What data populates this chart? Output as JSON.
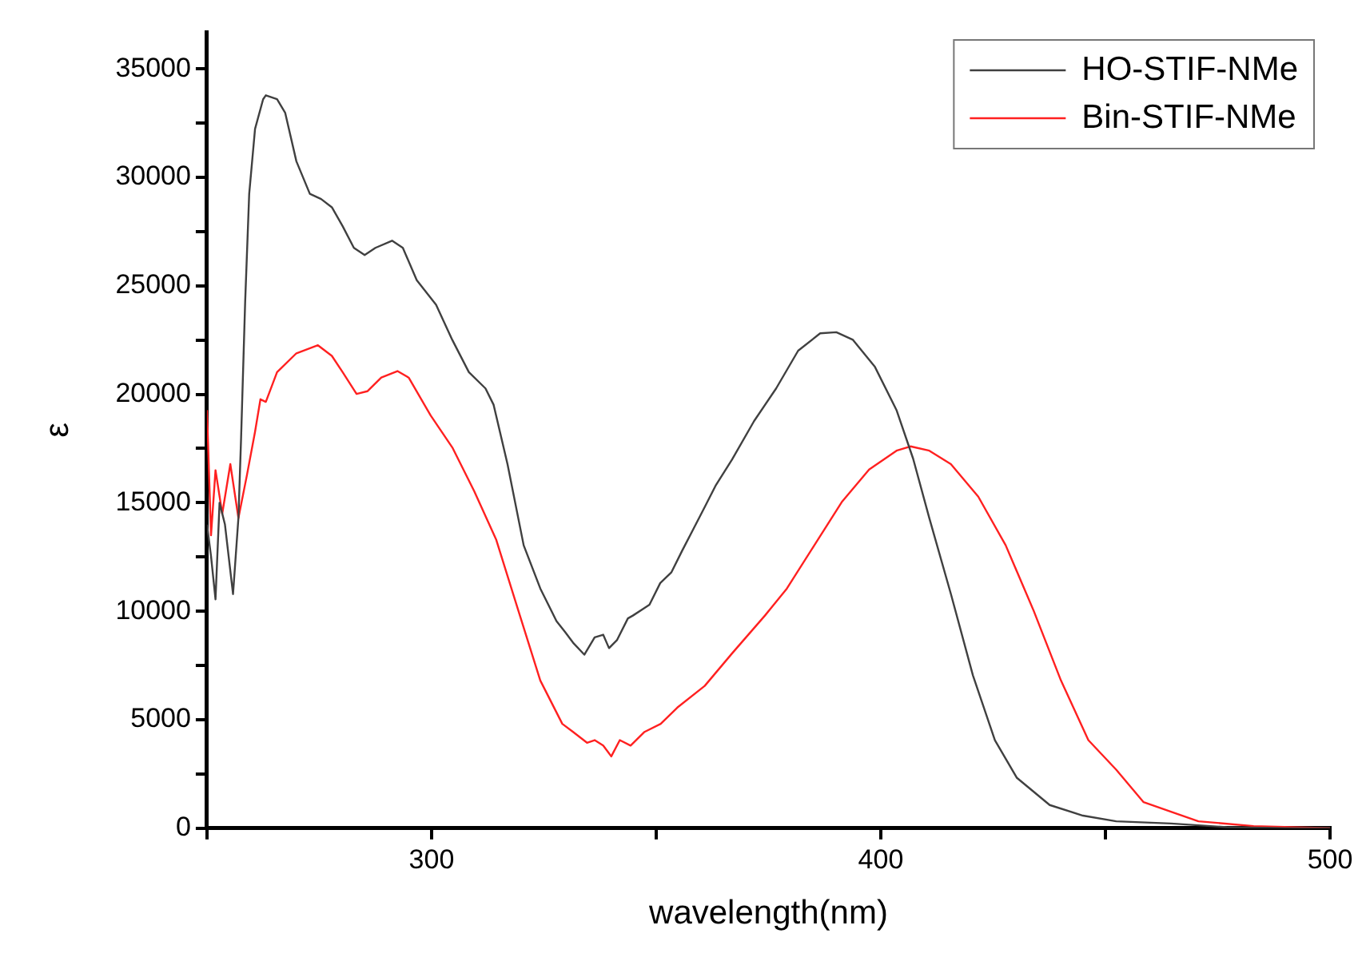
{
  "chart_data": {
    "type": "line",
    "xlabel": "wavelength(nm)",
    "ylabel": "ε",
    "xlim": [
      250,
      500
    ],
    "ylim": [
      0,
      36700
    ],
    "xticks": [
      {
        "value": 250,
        "label": null
      },
      300,
      {
        "value": 350,
        "label": null
      },
      400,
      {
        "value": 450,
        "label": null
      },
      500
    ],
    "yticks": [
      0,
      {
        "value": 2500,
        "label": null
      },
      5000,
      {
        "value": 7500,
        "label": null
      },
      10000,
      {
        "value": 12500,
        "label": null
      },
      15000,
      {
        "value": 17500,
        "label": null
      },
      20000,
      {
        "value": 22500,
        "label": null
      },
      25000,
      {
        "value": 27500,
        "label": null
      },
      30000,
      {
        "value": 32500,
        "label": null
      },
      35000
    ],
    "grid": false,
    "legend": "top right",
    "marker": "none",
    "line_style": "solid",
    "series": [
      {
        "name": "HO-STIF-NMe",
        "color": "#404040",
        "x": [
          250,
          250.9,
          251.9,
          252.8,
          254,
          255.8,
          257,
          257.6,
          258.5,
          259.4,
          260.7,
          262.5,
          263.1,
          265.6,
          267.4,
          269.9,
          272.9,
          275.4,
          277.8,
          280.2,
          282.7,
          285.1,
          287.5,
          291.2,
          293.6,
          296.7,
          301,
          304.6,
          308.3,
          312,
          313.8,
          316.9,
          320.5,
          324.2,
          327.8,
          329.7,
          331.5,
          334,
          336.3,
          338.2,
          339.5,
          341.3,
          343.7,
          344.8,
          348.5,
          350.9,
          353.4,
          355.8,
          358.3,
          360.8,
          363.2,
          366.9,
          371.8,
          376.7,
          381.6,
          386.5,
          390.1,
          393.8,
          398.7,
          403.5,
          407.2,
          410.8,
          415.6,
          420.5,
          425.4,
          430.3,
          437.6,
          445,
          452.4,
          464.6,
          477,
          490,
          500
        ],
        "values": [
          14000,
          12540,
          10550,
          15000,
          14000,
          10790,
          14300,
          18020,
          24260,
          29240,
          32230,
          33600,
          33780,
          33600,
          32980,
          30740,
          29240,
          29000,
          28620,
          27750,
          26750,
          26420,
          26750,
          27080,
          26750,
          25260,
          24130,
          22510,
          21020,
          20270,
          19520,
          16780,
          13040,
          11050,
          9550,
          9050,
          8550,
          8000,
          8800,
          8920,
          8300,
          8680,
          9670,
          9800,
          10300,
          11300,
          11800,
          12800,
          13800,
          14800,
          15780,
          17000,
          18770,
          20270,
          22010,
          22810,
          22860,
          22510,
          21260,
          19270,
          17030,
          14290,
          10800,
          7050,
          4060,
          2320,
          1070,
          580,
          320,
          220,
          50,
          0,
          0
        ]
      },
      {
        "name": "Bin-STIF-NMe",
        "color": "#ff2020",
        "x": [
          250,
          250.9,
          251.9,
          253.4,
          255.2,
          257,
          258.9,
          260.7,
          261.9,
          263.1,
          265.6,
          269.9,
          274.7,
          277.8,
          280.2,
          283.3,
          285.7,
          288.8,
          292.4,
          294.9,
          299.8,
          304.7,
          309.5,
          314.4,
          319.3,
          324.2,
          329.1,
          331.5,
          334.6,
          336.3,
          338.2,
          340,
          341.9,
          344.3,
          347.4,
          351,
          354.7,
          360.8,
          366.9,
          374.2,
          379.1,
          385.2,
          391.3,
          397.4,
          403.5,
          406.6,
          410.8,
          415.6,
          421.7,
          427.8,
          434,
          440.1,
          446.2,
          452.4,
          458.5,
          470.7,
          483,
          500
        ],
        "values": [
          19270,
          13500,
          16500,
          14500,
          16780,
          14300,
          16280,
          18270,
          19770,
          19650,
          21020,
          21890,
          22260,
          21770,
          21020,
          20020,
          20140,
          20770,
          21070,
          20770,
          19020,
          17520,
          15530,
          13290,
          10040,
          6810,
          4810,
          4440,
          3940,
          4060,
          3810,
          3310,
          4060,
          3810,
          4440,
          4810,
          5560,
          6560,
          8060,
          9800,
          11050,
          13040,
          15030,
          16530,
          17400,
          17600,
          17400,
          16780,
          15280,
          13040,
          10040,
          6810,
          4060,
          2700,
          1200,
          320,
          100,
          0
        ]
      }
    ]
  }
}
